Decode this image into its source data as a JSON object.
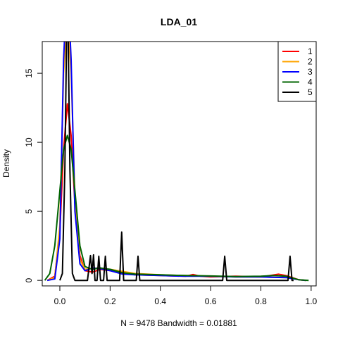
{
  "chart_data": {
    "type": "line",
    "title": "LDA_01",
    "xlabel": "N = 9478   Bandwidth = 0.01881",
    "ylabel": "Density",
    "xlim": [
      -0.07,
      1.02
    ],
    "ylim": [
      -0.4,
      17.3
    ],
    "xticks": [
      0.0,
      0.2,
      0.4,
      0.6,
      0.8,
      1.0
    ],
    "xtick_labels": [
      "0.0",
      "0.2",
      "0.4",
      "0.6",
      "0.8",
      "1.0"
    ],
    "yticks": [
      0,
      5,
      10,
      15
    ],
    "ytick_labels": [
      "0",
      "5",
      "10",
      "15"
    ],
    "grid": false,
    "legend": "top-right",
    "series": [
      {
        "name": "1",
        "color": "#ff0000",
        "points": [
          [
            -0.05,
            0
          ],
          [
            -0.02,
            0.3
          ],
          [
            0.0,
            3.5
          ],
          [
            0.015,
            9.5
          ],
          [
            0.03,
            12.8
          ],
          [
            0.045,
            10.5
          ],
          [
            0.06,
            5.5
          ],
          [
            0.08,
            1.8
          ],
          [
            0.1,
            0.7
          ],
          [
            0.13,
            0.6
          ],
          [
            0.16,
            0.8
          ],
          [
            0.2,
            0.7
          ],
          [
            0.25,
            0.5
          ],
          [
            0.3,
            0.4
          ],
          [
            0.4,
            0.35
          ],
          [
            0.5,
            0.3
          ],
          [
            0.53,
            0.42
          ],
          [
            0.56,
            0.3
          ],
          [
            0.6,
            0.25
          ],
          [
            0.7,
            0.3
          ],
          [
            0.8,
            0.25
          ],
          [
            0.87,
            0.45
          ],
          [
            0.9,
            0.35
          ],
          [
            0.95,
            0.05
          ],
          [
            0.98,
            0
          ]
        ]
      },
      {
        "name": "2",
        "color": "#ffa500",
        "points": [
          [
            -0.05,
            0
          ],
          [
            -0.02,
            0.2
          ],
          [
            0.0,
            4
          ],
          [
            0.015,
            15
          ],
          [
            0.03,
            19
          ],
          [
            0.045,
            15
          ],
          [
            0.06,
            6
          ],
          [
            0.08,
            1.5
          ],
          [
            0.1,
            0.8
          ],
          [
            0.15,
            0.9
          ],
          [
            0.2,
            0.8
          ],
          [
            0.3,
            0.5
          ],
          [
            0.4,
            0.4
          ],
          [
            0.5,
            0.35
          ],
          [
            0.6,
            0.3
          ],
          [
            0.7,
            0.25
          ],
          [
            0.8,
            0.25
          ],
          [
            0.9,
            0.2
          ],
          [
            0.95,
            0.05
          ],
          [
            0.98,
            0
          ]
        ]
      },
      {
        "name": "3",
        "color": "#0000ff",
        "points": [
          [
            -0.05,
            0
          ],
          [
            -0.02,
            0.1
          ],
          [
            0.0,
            3
          ],
          [
            0.015,
            16
          ],
          [
            0.03,
            22
          ],
          [
            0.045,
            16
          ],
          [
            0.06,
            5
          ],
          [
            0.08,
            1.2
          ],
          [
            0.1,
            0.7
          ],
          [
            0.13,
            0.9
          ],
          [
            0.16,
            0.85
          ],
          [
            0.2,
            0.7
          ],
          [
            0.25,
            0.45
          ],
          [
            0.3,
            0.4
          ],
          [
            0.4,
            0.35
          ],
          [
            0.5,
            0.3
          ],
          [
            0.6,
            0.3
          ],
          [
            0.7,
            0.25
          ],
          [
            0.8,
            0.25
          ],
          [
            0.9,
            0.2
          ],
          [
            0.95,
            0.05
          ],
          [
            0.98,
            0
          ]
        ]
      },
      {
        "name": "4",
        "color": "#006400",
        "points": [
          [
            -0.06,
            0
          ],
          [
            -0.04,
            0.5
          ],
          [
            -0.02,
            2.5
          ],
          [
            0.0,
            6.5
          ],
          [
            0.015,
            9.5
          ],
          [
            0.03,
            10.5
          ],
          [
            0.045,
            9.5
          ],
          [
            0.06,
            6.5
          ],
          [
            0.08,
            2.5
          ],
          [
            0.1,
            1
          ],
          [
            0.13,
            0.8
          ],
          [
            0.16,
            0.9
          ],
          [
            0.2,
            0.8
          ],
          [
            0.25,
            0.55
          ],
          [
            0.3,
            0.45
          ],
          [
            0.4,
            0.4
          ],
          [
            0.5,
            0.35
          ],
          [
            0.6,
            0.32
          ],
          [
            0.7,
            0.28
          ],
          [
            0.8,
            0.3
          ],
          [
            0.85,
            0.35
          ],
          [
            0.9,
            0.3
          ],
          [
            0.95,
            0.05
          ],
          [
            0.99,
            0
          ]
        ]
      },
      {
        "name": "5",
        "color": "#000000",
        "points": [
          [
            0.0,
            0
          ],
          [
            0.01,
            0.5
          ],
          [
            0.02,
            8
          ],
          [
            0.03,
            22
          ],
          [
            0.04,
            8
          ],
          [
            0.05,
            0.5
          ],
          [
            0.06,
            0
          ],
          [
            0.11,
            0
          ],
          [
            0.122,
            1.8
          ],
          [
            0.128,
            0.5
          ],
          [
            0.134,
            1.85
          ],
          [
            0.14,
            0
          ],
          [
            0.148,
            0
          ],
          [
            0.155,
            1.75
          ],
          [
            0.162,
            0
          ],
          [
            0.174,
            0
          ],
          [
            0.181,
            1.75
          ],
          [
            0.188,
            0
          ],
          [
            0.238,
            0
          ],
          [
            0.246,
            3.5
          ],
          [
            0.254,
            0
          ],
          [
            0.304,
            0
          ],
          [
            0.311,
            1.75
          ],
          [
            0.318,
            0
          ],
          [
            0.648,
            0
          ],
          [
            0.656,
            1.75
          ],
          [
            0.664,
            0
          ],
          [
            0.908,
            0
          ],
          [
            0.916,
            1.75
          ],
          [
            0.924,
            0
          ],
          [
            0.93,
            0
          ]
        ]
      }
    ]
  }
}
